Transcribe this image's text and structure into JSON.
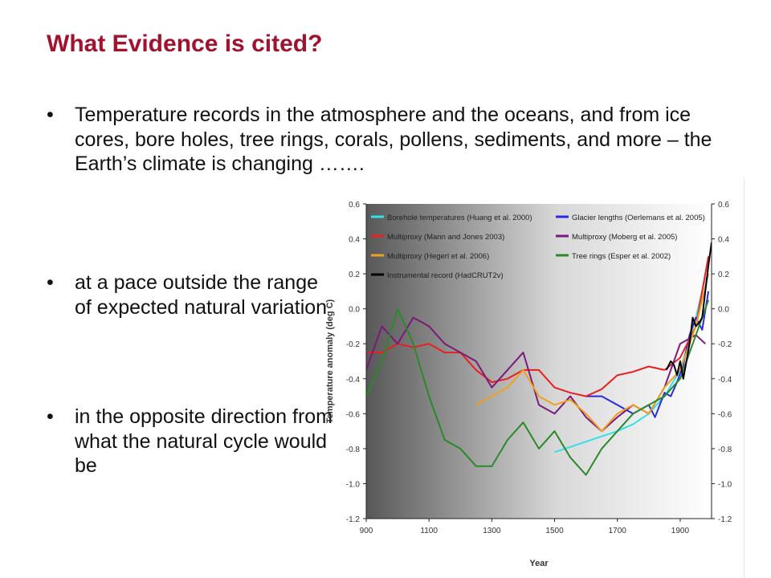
{
  "slide": {
    "title": "What Evidence is cited?",
    "bullet_symbol": "•",
    "bullets": [
      "Temperature records in the atmosphere and the oceans, and from ice cores, bore holes, tree rings, corals, pollens, sediments, and more – the Earth’s climate is changing …….",
      "at a pace outside the range of expected natural variation",
      "in the opposite direction from what the natural cycle would be"
    ]
  },
  "chart_data": {
    "type": "line",
    "xlabel": "Year",
    "ylabel": "Temperature anomaly (deg C)",
    "xlim": [
      900,
      2000
    ],
    "ylim": [
      -1.2,
      0.6
    ],
    "xticks": [
      900,
      1100,
      1300,
      1500,
      1700,
      1900
    ],
    "yticks": [
      0.6,
      0.4,
      0.2,
      0.0,
      -0.2,
      -0.4,
      -0.6,
      -0.8,
      -1.0,
      -1.2
    ],
    "ytick_labels": [
      "0.6",
      "0.4",
      "0.2",
      "0.0",
      "-0.2",
      "-0.4",
      "-0.6",
      "-0.8",
      "-1.0",
      "-1.2"
    ],
    "right_axis_mirror": true,
    "background": "gradient dark grey (left) to white (right)",
    "legend_position": "top-left, two columns",
    "series": [
      {
        "name": "Borehole temperatures (Huang et al. 2000)",
        "color": "#33e0e8",
        "x": [
          1500,
          1550,
          1600,
          1650,
          1700,
          1750,
          1800,
          1850,
          1900,
          1950,
          1980
        ],
        "y": [
          -0.82,
          -0.79,
          -0.76,
          -0.73,
          -0.7,
          -0.66,
          -0.6,
          -0.5,
          -0.35,
          -0.05,
          0.18
        ]
      },
      {
        "name": "Glacier lengths (Oerlemans et al. 2005)",
        "color": "#2a2ae0",
        "x": [
          1600,
          1650,
          1700,
          1750,
          1800,
          1820,
          1850,
          1870,
          1890,
          1910,
          1930,
          1950,
          1970,
          1990
        ],
        "y": [
          -0.5,
          -0.5,
          -0.55,
          -0.6,
          -0.55,
          -0.62,
          -0.48,
          -0.5,
          -0.42,
          -0.32,
          -0.15,
          -0.05,
          -0.12,
          0.1
        ]
      },
      {
        "name": "Multiproxy (Mann and Jones 2003)",
        "color": "#e82020",
        "x": [
          900,
          950,
          1000,
          1050,
          1100,
          1150,
          1200,
          1250,
          1300,
          1350,
          1400,
          1450,
          1500,
          1550,
          1600,
          1650,
          1700,
          1750,
          1800,
          1850,
          1900,
          1950,
          1990
        ],
        "y": [
          -0.25,
          -0.25,
          -0.2,
          -0.22,
          -0.2,
          -0.25,
          -0.25,
          -0.35,
          -0.42,
          -0.4,
          -0.35,
          -0.35,
          -0.45,
          -0.48,
          -0.5,
          -0.46,
          -0.38,
          -0.36,
          -0.33,
          -0.35,
          -0.28,
          -0.1,
          0.3
        ]
      },
      {
        "name": "Multiproxy (Moberg et al. 2005)",
        "color": "#7a1a7a",
        "x": [
          900,
          950,
          1000,
          1050,
          1100,
          1150,
          1200,
          1250,
          1300,
          1350,
          1400,
          1450,
          1500,
          1550,
          1600,
          1650,
          1700,
          1750,
          1800,
          1850,
          1900,
          1950,
          1980
        ],
        "y": [
          -0.35,
          -0.1,
          -0.2,
          -0.05,
          -0.1,
          -0.2,
          -0.25,
          -0.3,
          -0.45,
          -0.35,
          -0.25,
          -0.55,
          -0.6,
          -0.5,
          -0.62,
          -0.7,
          -0.62,
          -0.55,
          -0.6,
          -0.45,
          -0.2,
          -0.15,
          -0.2
        ]
      },
      {
        "name": "Multiproxy (Hegerl et al. 2006)",
        "color": "#f0a020",
        "x": [
          1250,
          1300,
          1350,
          1400,
          1450,
          1500,
          1550,
          1600,
          1650,
          1700,
          1750,
          1800,
          1850,
          1900,
          1950,
          1990
        ],
        "y": [
          -0.55,
          -0.5,
          -0.45,
          -0.35,
          -0.5,
          -0.55,
          -0.52,
          -0.6,
          -0.7,
          -0.6,
          -0.55,
          -0.6,
          -0.45,
          -0.35,
          -0.1,
          0.2
        ]
      },
      {
        "name": "Tree rings (Esper et al. 2002)",
        "color": "#2a8a2a",
        "x": [
          900,
          950,
          1000,
          1050,
          1100,
          1150,
          1200,
          1250,
          1300,
          1350,
          1400,
          1450,
          1500,
          1550,
          1600,
          1650,
          1700,
          1750,
          1800,
          1850,
          1900,
          1950,
          1990
        ],
        "y": [
          -0.5,
          -0.3,
          0.0,
          -0.2,
          -0.5,
          -0.75,
          -0.8,
          -0.9,
          -0.9,
          -0.75,
          -0.65,
          -0.8,
          -0.7,
          -0.85,
          -0.95,
          -0.8,
          -0.7,
          -0.6,
          -0.55,
          -0.5,
          -0.4,
          -0.15,
          0.05
        ]
      },
      {
        "name": "Instrumental record (HadCRUT2v)",
        "color": "#000000",
        "x": [
          1856,
          1870,
          1880,
          1890,
          1900,
          1910,
          1920,
          1930,
          1940,
          1950,
          1960,
          1970,
          1980,
          1990,
          2000
        ],
        "y": [
          -0.35,
          -0.3,
          -0.32,
          -0.38,
          -0.3,
          -0.4,
          -0.3,
          -0.2,
          -0.05,
          -0.1,
          -0.08,
          -0.05,
          0.1,
          0.25,
          0.38
        ]
      }
    ]
  }
}
